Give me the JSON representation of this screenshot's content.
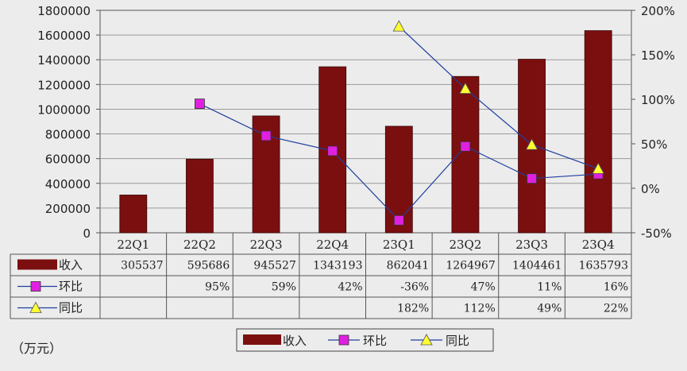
{
  "chart_data": {
    "type": "bar",
    "categories": [
      "22Q1",
      "22Q2",
      "22Q3",
      "22Q4",
      "23Q1",
      "23Q2",
      "23Q3",
      "23Q4"
    ],
    "series": [
      {
        "name": "收入",
        "type": "bar",
        "axis": "left",
        "color": "#7b0f0f",
        "values": [
          305537,
          595686,
          945527,
          1343193,
          862041,
          1264967,
          1404461,
          1635793
        ]
      },
      {
        "name": "环比",
        "type": "line",
        "axis": "right",
        "marker": "square",
        "color": "#e020e0",
        "values": [
          null,
          95,
          59,
          42,
          -36,
          47,
          11,
          16
        ]
      },
      {
        "name": "同比",
        "type": "line",
        "axis": "right",
        "marker": "triangle",
        "color": "#ffff33",
        "values": [
          null,
          null,
          null,
          null,
          182,
          112,
          49,
          22
        ]
      }
    ],
    "y_left": {
      "min": 0,
      "max": 1800000,
      "ticks": [
        "0",
        "200000",
        "400000",
        "600000",
        "800000",
        "1000000",
        "1200000",
        "1400000",
        "1600000",
        "1800000"
      ]
    },
    "y_right": {
      "min": -50,
      "max": 200,
      "ticks": [
        "-50%",
        "0%",
        "50%",
        "100%",
        "150%",
        "200%"
      ]
    },
    "table_rows": [
      {
        "label": "收入",
        "cells": [
          "305537",
          "595686",
          "945527",
          "1343193",
          "862041",
          "1264967",
          "1404461",
          "1635793"
        ]
      },
      {
        "label": "环比",
        "cells": [
          "",
          "95%",
          "59%",
          "42%",
          "-36%",
          "47%",
          "11%",
          "16%"
        ]
      },
      {
        "label": "同比",
        "cells": [
          "",
          "",
          "",
          "",
          "182%",
          "112%",
          "49%",
          "22%"
        ]
      }
    ],
    "legend": [
      "收入",
      "环比",
      "同比"
    ],
    "unit": "（万元）",
    "line_color": "#1f3f9f"
  }
}
